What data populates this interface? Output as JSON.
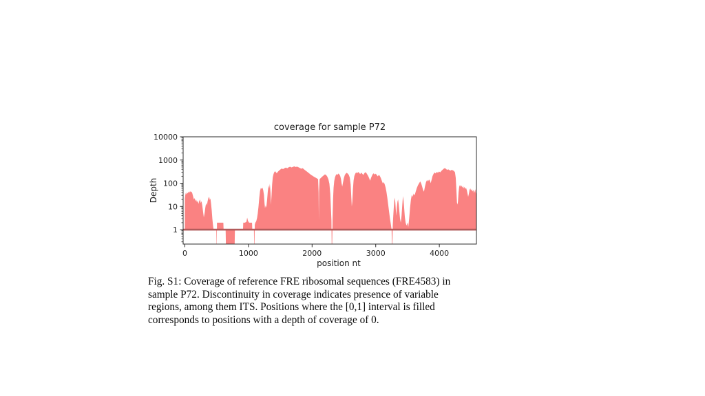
{
  "chart_data": {
    "type": "area",
    "title": "coverage for sample P72",
    "xlabel": "position nt",
    "ylabel": "Depth",
    "y_scale": "log",
    "xlim": [
      -27,
      4583
    ],
    "ylim": [
      0.24,
      10000
    ],
    "x_ticks": [
      0,
      1000,
      2000,
      3000,
      4000
    ],
    "y_ticks": [
      1,
      10,
      100,
      1000,
      10000
    ],
    "grid": false,
    "legend": "none",
    "baseline_depth": 1,
    "zero_depth_rendering": "positions with depth 0 are filled from the depth=1 baseline down to the axis bottom",
    "colors": {
      "fill": "#fa8282",
      "baseline_line": "#b25b5b",
      "axis": "#2b2b2b",
      "text": "#1c1c1c",
      "background": "#ffffff"
    },
    "series": [
      {
        "name": "coverage",
        "points": [
          [
            0,
            22
          ],
          [
            6,
            30
          ],
          [
            14,
            38
          ],
          [
            24,
            33
          ],
          [
            34,
            41
          ],
          [
            46,
            36
          ],
          [
            58,
            44
          ],
          [
            70,
            39
          ],
          [
            82,
            46
          ],
          [
            94,
            41
          ],
          [
            106,
            44
          ],
          [
            118,
            36
          ],
          [
            130,
            27
          ],
          [
            142,
            20
          ],
          [
            154,
            23
          ],
          [
            166,
            17
          ],
          [
            178,
            20
          ],
          [
            190,
            15
          ],
          [
            202,
            18
          ],
          [
            214,
            13
          ],
          [
            226,
            17
          ],
          [
            238,
            20
          ],
          [
            250,
            14
          ],
          [
            262,
            17
          ],
          [
            274,
            11
          ],
          [
            286,
            6
          ],
          [
            298,
            3.4
          ],
          [
            310,
            5
          ],
          [
            322,
            9
          ],
          [
            334,
            14
          ],
          [
            346,
            11
          ],
          [
            358,
            17
          ],
          [
            370,
            23
          ],
          [
            382,
            26
          ],
          [
            392,
            19
          ],
          [
            402,
            22
          ],
          [
            412,
            13
          ],
          [
            422,
            7
          ],
          [
            432,
            3
          ],
          [
            442,
            1.6
          ],
          [
            452,
            1
          ],
          [
            495,
            1
          ],
          [
            498,
            0
          ],
          [
            502,
            0
          ],
          [
            505,
            2
          ],
          [
            540,
            2
          ],
          [
            570,
            2
          ],
          [
            605,
            2
          ],
          [
            609,
            1
          ],
          [
            641,
            1
          ],
          [
            645,
            0
          ],
          [
            783,
            0
          ],
          [
            787,
            1
          ],
          [
            914,
            1
          ],
          [
            918,
            2
          ],
          [
            945,
            2
          ],
          [
            968,
            2.2
          ],
          [
            980,
            3.3
          ],
          [
            992,
            2.4
          ],
          [
            1010,
            2
          ],
          [
            1035,
            2
          ],
          [
            1056,
            2
          ],
          [
            1060,
            1
          ],
          [
            1086,
            1
          ],
          [
            1089,
            0
          ],
          [
            1095,
            0
          ],
          [
            1099,
            1.6
          ],
          [
            1108,
            2
          ],
          [
            1122,
            2.3
          ],
          [
            1135,
            3.2
          ],
          [
            1146,
            5
          ],
          [
            1158,
            10
          ],
          [
            1170,
            24
          ],
          [
            1182,
            47
          ],
          [
            1194,
            62
          ],
          [
            1208,
            57
          ],
          [
            1220,
            65
          ],
          [
            1232,
            50
          ],
          [
            1243,
            32
          ],
          [
            1252,
            14
          ],
          [
            1260,
            8.5
          ],
          [
            1270,
            11
          ],
          [
            1280,
            9
          ],
          [
            1292,
            18
          ],
          [
            1304,
            45
          ],
          [
            1316,
            80
          ],
          [
            1326,
            60
          ],
          [
            1336,
            95
          ],
          [
            1346,
            40
          ],
          [
            1354,
            12
          ],
          [
            1362,
            28
          ],
          [
            1372,
            90
          ],
          [
            1382,
            180
          ],
          [
            1394,
            250
          ],
          [
            1406,
            300
          ],
          [
            1418,
            330
          ],
          [
            1430,
            300
          ],
          [
            1445,
            270
          ],
          [
            1460,
            310
          ],
          [
            1480,
            350
          ],
          [
            1500,
            390
          ],
          [
            1522,
            430
          ],
          [
            1544,
            405
          ],
          [
            1566,
            445
          ],
          [
            1588,
            475
          ],
          [
            1610,
            440
          ],
          [
            1632,
            490
          ],
          [
            1654,
            515
          ],
          [
            1676,
            480
          ],
          [
            1698,
            505
          ],
          [
            1720,
            535
          ],
          [
            1742,
            500
          ],
          [
            1764,
            520
          ],
          [
            1786,
            490
          ],
          [
            1808,
            455
          ],
          [
            1830,
            425
          ],
          [
            1852,
            445
          ],
          [
            1874,
            395
          ],
          [
            1896,
            355
          ],
          [
            1918,
            320
          ],
          [
            1940,
            285
          ],
          [
            1962,
            255
          ],
          [
            1984,
            230
          ],
          [
            2006,
            210
          ],
          [
            2028,
            192
          ],
          [
            2050,
            178
          ],
          [
            2072,
            165
          ],
          [
            2094,
            150
          ],
          [
            2102,
            40
          ],
          [
            2106,
            2.5
          ],
          [
            2110,
            45
          ],
          [
            2118,
            150
          ],
          [
            2130,
            162
          ],
          [
            2148,
            180
          ],
          [
            2166,
            200
          ],
          [
            2184,
            220
          ],
          [
            2202,
            242
          ],
          [
            2220,
            228
          ],
          [
            2238,
            195
          ],
          [
            2256,
            150
          ],
          [
            2272,
            95
          ],
          [
            2286,
            35
          ],
          [
            2296,
            8
          ],
          [
            2304,
            2.5
          ],
          [
            2308,
            0
          ],
          [
            2316,
            0
          ],
          [
            2322,
            3
          ],
          [
            2330,
            22
          ],
          [
            2338,
            65
          ],
          [
            2348,
            125
          ],
          [
            2360,
            180
          ],
          [
            2372,
            220
          ],
          [
            2386,
            250
          ],
          [
            2400,
            232
          ],
          [
            2414,
            262
          ],
          [
            2428,
            242
          ],
          [
            2442,
            205
          ],
          [
            2454,
            152
          ],
          [
            2464,
            98
          ],
          [
            2474,
            72
          ],
          [
            2486,
            108
          ],
          [
            2500,
            168
          ],
          [
            2514,
            225
          ],
          [
            2528,
            258
          ],
          [
            2544,
            282
          ],
          [
            2560,
            260
          ],
          [
            2576,
            232
          ],
          [
            2592,
            178
          ],
          [
            2606,
            88
          ],
          [
            2616,
            26
          ],
          [
            2624,
            10
          ],
          [
            2632,
            16
          ],
          [
            2642,
            56
          ],
          [
            2652,
            130
          ],
          [
            2664,
            205
          ],
          [
            2678,
            255
          ],
          [
            2692,
            295
          ],
          [
            2708,
            268
          ],
          [
            2724,
            305
          ],
          [
            2740,
            282
          ],
          [
            2756,
            248
          ],
          [
            2772,
            288
          ],
          [
            2788,
            258
          ],
          [
            2804,
            228
          ],
          [
            2820,
            268
          ],
          [
            2836,
            298
          ],
          [
            2852,
            278
          ],
          [
            2868,
            238
          ],
          [
            2884,
            198
          ],
          [
            2900,
            158
          ],
          [
            2912,
            128
          ],
          [
            2926,
            168
          ],
          [
            2940,
            208
          ],
          [
            2954,
            248
          ],
          [
            2968,
            268
          ],
          [
            2984,
            238
          ],
          [
            3000,
            258
          ],
          [
            3016,
            228
          ],
          [
            3032,
            198
          ],
          [
            3048,
            228
          ],
          [
            3064,
            208
          ],
          [
            3080,
            168
          ],
          [
            3096,
            128
          ],
          [
            3112,
            98
          ],
          [
            3126,
            112
          ],
          [
            3140,
            92
          ],
          [
            3154,
            68
          ],
          [
            3168,
            44
          ],
          [
            3182,
            24
          ],
          [
            3196,
            12
          ],
          [
            3210,
            6
          ],
          [
            3224,
            3
          ],
          [
            3238,
            1.7
          ],
          [
            3250,
            1
          ],
          [
            3254,
            0
          ],
          [
            3262,
            0
          ],
          [
            3268,
            1.5
          ],
          [
            3276,
            4
          ],
          [
            3284,
            9
          ],
          [
            3292,
            18
          ],
          [
            3300,
            24
          ],
          [
            3308,
            15
          ],
          [
            3316,
            7
          ],
          [
            3324,
            4
          ],
          [
            3332,
            9
          ],
          [
            3342,
            16
          ],
          [
            3352,
            20
          ],
          [
            3362,
            12
          ],
          [
            3372,
            6
          ],
          [
            3382,
            3
          ],
          [
            3394,
            2
          ],
          [
            3406,
            4
          ],
          [
            3418,
            12
          ],
          [
            3428,
            28
          ],
          [
            3438,
            18
          ],
          [
            3448,
            8
          ],
          [
            3458,
            3.5
          ],
          [
            3470,
            2
          ],
          [
            3484,
            1.5
          ],
          [
            3498,
            2
          ],
          [
            3512,
            1.3
          ],
          [
            3526,
            3
          ],
          [
            3540,
            9
          ],
          [
            3554,
            20
          ],
          [
            3568,
            32
          ],
          [
            3582,
            26
          ],
          [
            3596,
            36
          ],
          [
            3612,
            30
          ],
          [
            3628,
            43
          ],
          [
            3646,
            62
          ],
          [
            3664,
            82
          ],
          [
            3682,
            100
          ],
          [
            3700,
            120
          ],
          [
            3716,
            96
          ],
          [
            3730,
            72
          ],
          [
            3744,
            52
          ],
          [
            3758,
            43
          ],
          [
            3774,
            72
          ],
          [
            3790,
            110
          ],
          [
            3806,
            138
          ],
          [
            3822,
            120
          ],
          [
            3838,
            145
          ],
          [
            3852,
            128
          ],
          [
            3864,
            100
          ],
          [
            3878,
            140
          ],
          [
            3892,
            200
          ],
          [
            3908,
            250
          ],
          [
            3924,
            290
          ],
          [
            3942,
            265
          ],
          [
            3960,
            305
          ],
          [
            3978,
            285
          ],
          [
            3996,
            320
          ],
          [
            4014,
            295
          ],
          [
            4032,
            340
          ],
          [
            4050,
            380
          ],
          [
            4068,
            420
          ],
          [
            4086,
            450
          ],
          [
            4104,
            415
          ],
          [
            4122,
            375
          ],
          [
            4140,
            400
          ],
          [
            4158,
            370
          ],
          [
            4176,
            350
          ],
          [
            4194,
            378
          ],
          [
            4212,
            360
          ],
          [
            4230,
            340
          ],
          [
            4246,
            295
          ],
          [
            4258,
            170
          ],
          [
            4268,
            50
          ],
          [
            4277,
            15
          ],
          [
            4285,
            12
          ],
          [
            4293,
            16
          ],
          [
            4302,
            40
          ],
          [
            4312,
            70
          ],
          [
            4324,
            85
          ],
          [
            4336,
            70
          ],
          [
            4348,
            80
          ],
          [
            4360,
            65
          ],
          [
            4372,
            76
          ],
          [
            4384,
            60
          ],
          [
            4396,
            70
          ],
          [
            4408,
            56
          ],
          [
            4420,
            64
          ],
          [
            4432,
            50
          ],
          [
            4443,
            36
          ],
          [
            4453,
            26
          ],
          [
            4463,
            34
          ],
          [
            4475,
            52
          ],
          [
            4487,
            60
          ],
          [
            4499,
            48
          ],
          [
            4511,
            56
          ],
          [
            4523,
            44
          ],
          [
            4535,
            52
          ],
          [
            4546,
            38
          ],
          [
            4556,
            45
          ],
          [
            4566,
            55
          ],
          [
            4574,
            35
          ],
          [
            4583,
            55
          ]
        ]
      }
    ]
  },
  "caption": {
    "lines": [
      "Fig. S1: Coverage of reference FRE ribosomal sequences (FRE4583) in",
      "sample P72. Discontinuity in coverage indicates presence of variable",
      "regions, among them ITS. Positions where the [0,1] interval is filled",
      "corresponds to positions with a depth of coverage of 0."
    ]
  }
}
